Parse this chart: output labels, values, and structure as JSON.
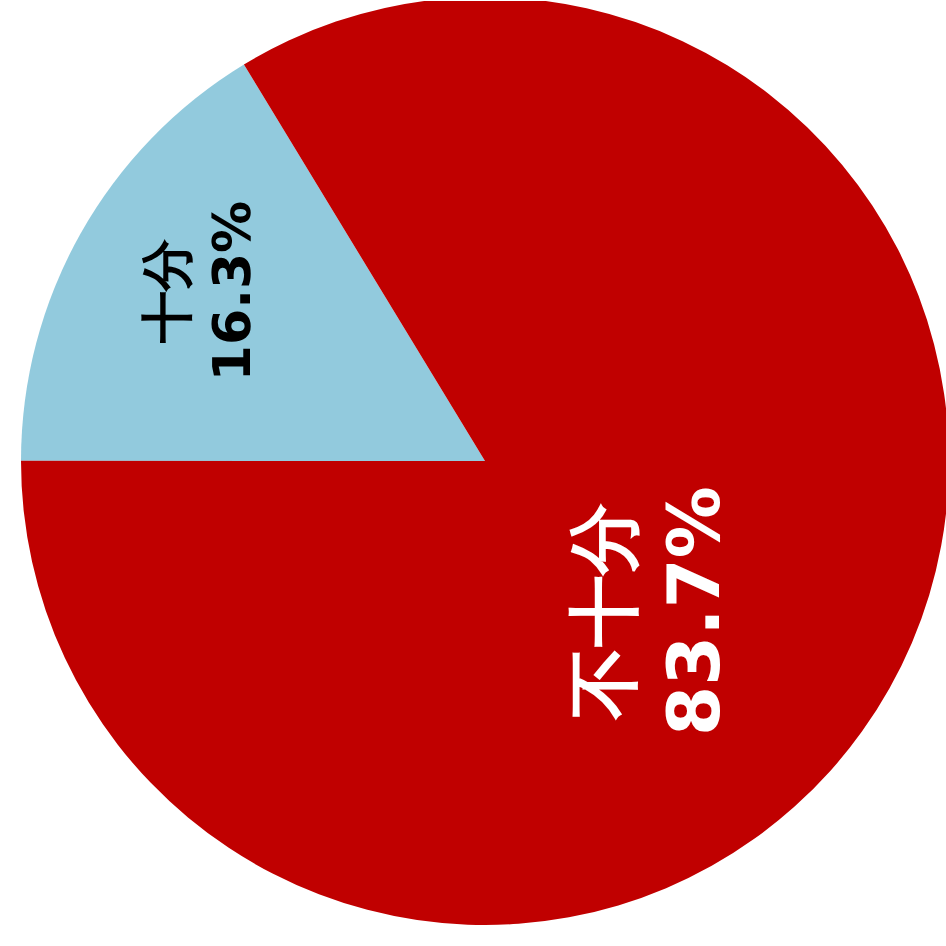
{
  "chart_data": {
    "type": "pie",
    "categories": [
      "十分",
      "不十分"
    ],
    "values": [
      16.3,
      83.7
    ],
    "colors": [
      "#92cadd",
      "#c00000"
    ],
    "value_labels": [
      "16.3%",
      "83.7%"
    ],
    "data_labels": true
  }
}
